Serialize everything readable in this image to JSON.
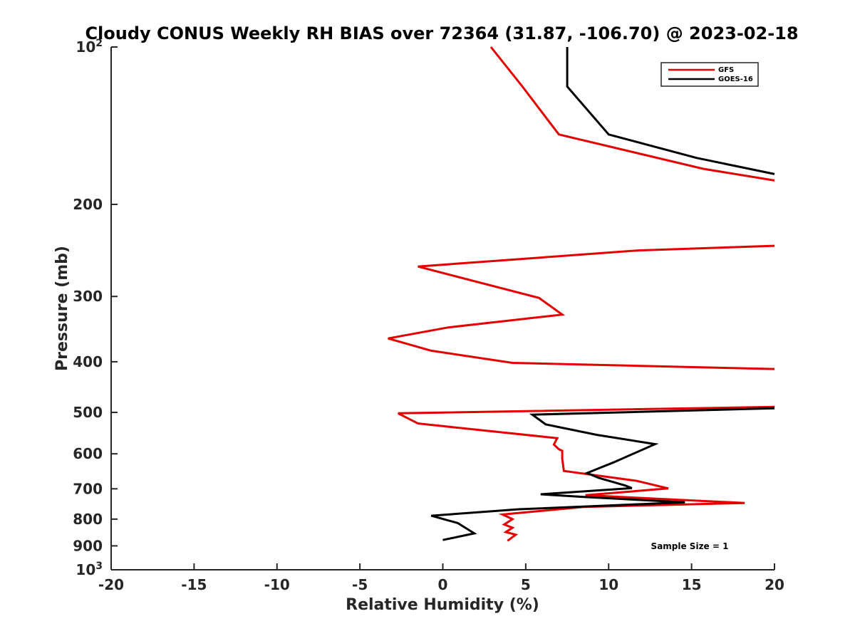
{
  "chart_data": {
    "type": "line",
    "title": "Cloudy CONUS Weekly RH BIAS over 72364 (31.87, -106.70) @ 2023-02-18",
    "xlabel": "Relative Humidity (%)",
    "ylabel": "Pressure (mb)",
    "xlim": [
      -20,
      20
    ],
    "ylim": [
      1000,
      100
    ],
    "y_scale": "log",
    "y_reversed": true,
    "grid": false,
    "legend_position": "top-right",
    "x_ticks": [
      -20,
      -15,
      -10,
      -5,
      0,
      5,
      10,
      15,
      20
    ],
    "x_tick_labels": [
      "-20",
      "-15",
      "-10",
      "-5",
      "0",
      "5",
      "10",
      "15",
      "20"
    ],
    "y_ticks": [
      {
        "value": 100,
        "base": "10",
        "sup": "2"
      },
      {
        "value": 200,
        "label": "200"
      },
      {
        "value": 300,
        "label": "300"
      },
      {
        "value": 400,
        "label": "400"
      },
      {
        "value": 500,
        "label": "500"
      },
      {
        "value": 600,
        "label": "600"
      },
      {
        "value": 700,
        "label": "700"
      },
      {
        "value": 800,
        "label": "800"
      },
      {
        "value": 900,
        "label": "900"
      },
      {
        "value": 1000,
        "base": "10",
        "sup": "3"
      }
    ],
    "annotation": "Sample Size = 1",
    "series": [
      {
        "name": "GFS",
        "color": "#e50000",
        "segments": [
          [
            [
              2.9,
              100
            ],
            [
              4.8,
              119
            ],
            [
              7.0,
              147
            ],
            [
              15.7,
              171
            ],
            [
              20.0,
              180
            ]
          ],
          [
            [
              20.0,
              240
            ],
            [
              11.8,
              245
            ],
            [
              -1.5,
              263
            ],
            [
              5.8,
              302
            ],
            [
              7.2,
              325
            ],
            [
              0.3,
              344
            ],
            [
              -3.3,
              361
            ],
            [
              -0.7,
              381
            ],
            [
              4.2,
              402
            ],
            [
              20.0,
              413
            ]
          ],
          [
            [
              20.0,
              488
            ],
            [
              -2.7,
              502
            ],
            [
              -1.5,
              525
            ],
            [
              6.9,
              560
            ],
            [
              6.7,
              576
            ],
            [
              7.0,
              588
            ],
            [
              7.2,
              592
            ],
            [
              7.2,
              613
            ],
            [
              7.3,
              647
            ],
            [
              11.7,
              676
            ],
            [
              13.6,
              699
            ],
            [
              8.6,
              720
            ],
            [
              18.2,
              745
            ],
            [
              8.5,
              758
            ],
            [
              3.6,
              784
            ],
            [
              4.2,
              800
            ],
            [
              3.7,
              819
            ],
            [
              4.2,
              831
            ],
            [
              3.8,
              847
            ],
            [
              4.4,
              857
            ],
            [
              3.9,
              880
            ]
          ]
        ]
      },
      {
        "name": "GOES-16",
        "color": "#000000",
        "segments": [
          [
            [
              7.5,
              100
            ],
            [
              7.5,
              119
            ],
            [
              10.0,
              147
            ],
            [
              15.3,
              163
            ],
            [
              20.0,
              175
            ]
          ],
          [
            [
              20.0,
              491
            ],
            [
              5.4,
              505
            ],
            [
              6.2,
              527
            ],
            [
              9.3,
              552
            ],
            [
              12.8,
              575
            ],
            [
              10.3,
              623
            ],
            [
              8.7,
              653
            ],
            [
              9.4,
              667
            ],
            [
              11.0,
              690
            ],
            [
              11.4,
              698
            ],
            [
              5.9,
              717
            ],
            [
              8.6,
              726
            ],
            [
              14.6,
              743
            ],
            [
              4.6,
              766
            ],
            [
              -0.7,
              788
            ],
            [
              0.9,
              814
            ],
            [
              1.9,
              852
            ],
            [
              0.0,
              877
            ]
          ]
        ]
      }
    ]
  }
}
